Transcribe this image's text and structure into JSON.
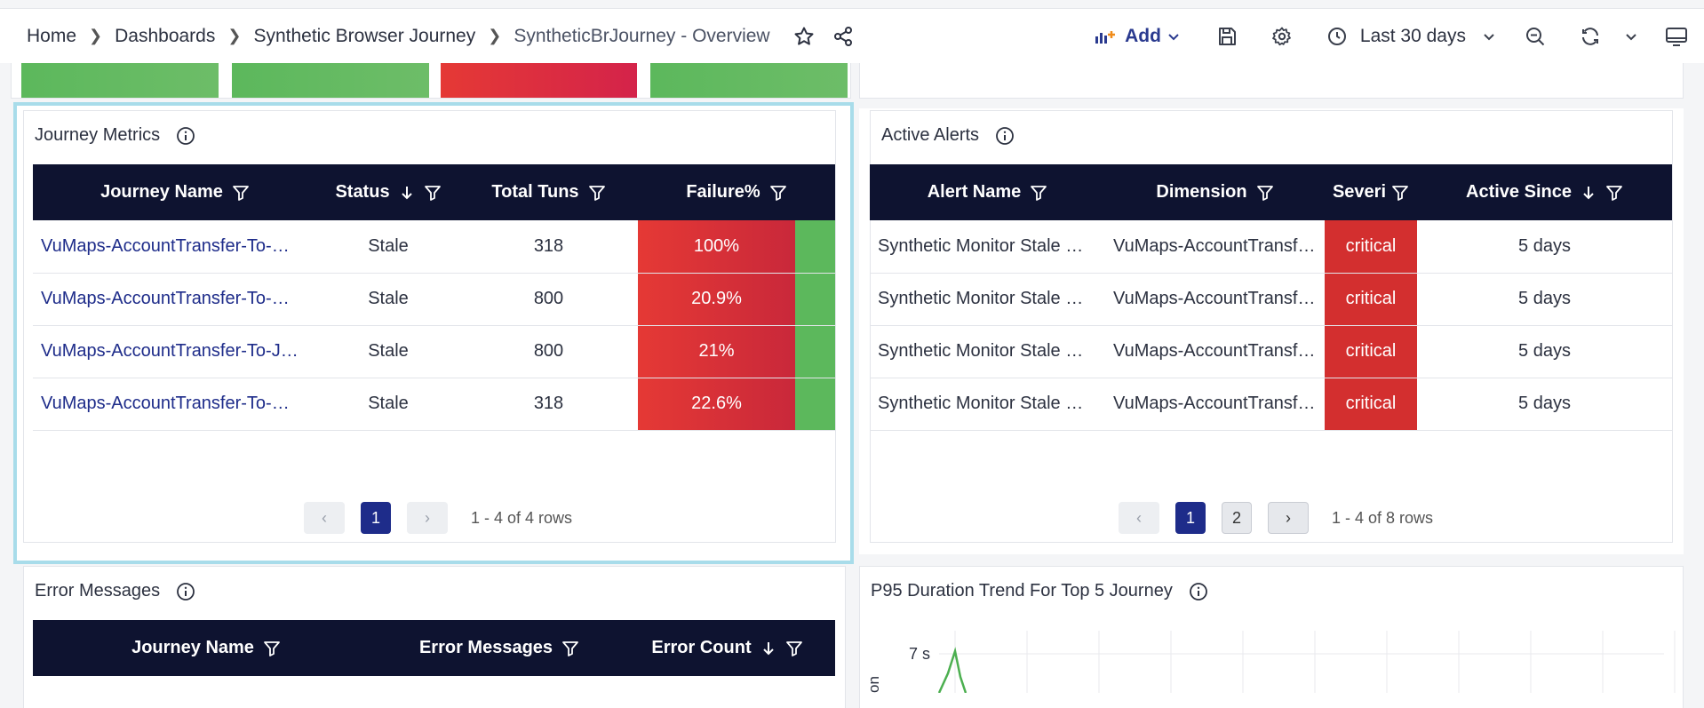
{
  "breadcrumb": [
    "Home",
    "Dashboards",
    "Synthetic Browser Journey",
    "SyntheticBrJourney - Overview"
  ],
  "toolbar": {
    "add_label": "Add",
    "time_range": "Last 30 days"
  },
  "journey_metrics": {
    "title": "Journey Metrics",
    "columns": [
      "Journey Name",
      "Status",
      "Total Tuns",
      "Failure%"
    ],
    "rows": [
      {
        "name": "VuMaps-AccountTransfer-To-…",
        "status": "Stale",
        "total": "318",
        "failure": "100%"
      },
      {
        "name": "VuMaps-AccountTransfer-To-…",
        "status": "Stale",
        "total": "800",
        "failure": "20.9%"
      },
      {
        "name": "VuMaps-AccountTransfer-To-J…",
        "status": "Stale",
        "total": "800",
        "failure": "21%"
      },
      {
        "name": "VuMaps-AccountTransfer-To-…",
        "status": "Stale",
        "total": "318",
        "failure": "22.6%"
      }
    ],
    "pagination": {
      "page": "1",
      "rows_text": "1 - 4 of 4 rows"
    }
  },
  "active_alerts": {
    "title": "Active Alerts",
    "columns": [
      "Alert Name",
      "Dimension",
      "Severi",
      "Active Since"
    ],
    "rows": [
      {
        "name": "Synthetic Monitor Stale …",
        "dimension": "VuMaps-AccountTransf…",
        "severity": "critical",
        "since": "5 days"
      },
      {
        "name": "Synthetic Monitor Stale …",
        "dimension": "VuMaps-AccountTransf…",
        "severity": "critical",
        "since": "5 days"
      },
      {
        "name": "Synthetic Monitor Stale …",
        "dimension": "VuMaps-AccountTransf…",
        "severity": "critical",
        "since": "5 days"
      },
      {
        "name": "Synthetic Monitor Stale …",
        "dimension": "VuMaps-AccountTransf…",
        "severity": "critical",
        "since": "5 days"
      }
    ],
    "pagination": {
      "page": "1",
      "page2": "2",
      "rows_text": "1 - 4 of 8 rows"
    }
  },
  "error_messages": {
    "title": "Error Messages",
    "columns": [
      "Journey Name",
      "Error Messages",
      "Error Count"
    ]
  },
  "p95": {
    "title": "P95 Duration Trend For Top 5 Journey",
    "y_tick": "7 s",
    "y_axis_label_fragment": "on"
  },
  "colors": {
    "header": "#0e1330",
    "critical": "#d32f2f",
    "ok": "#5cb85c",
    "accent": "#1e2c8a"
  }
}
